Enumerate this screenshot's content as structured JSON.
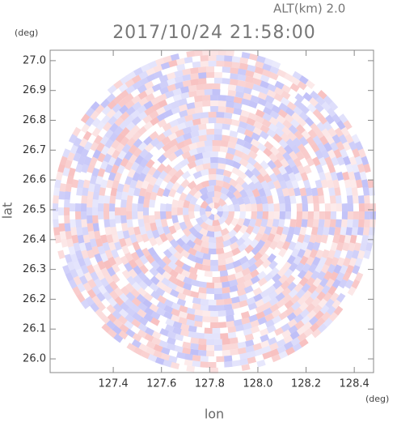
{
  "chart_data": {
    "type": "radar-ppi",
    "title": "2017/10/24 21:58:00",
    "subtitle": "ALT(km) 2.0",
    "x_label": "lon",
    "y_label": "lat",
    "x_unit": "(deg)",
    "y_unit": "(deg)",
    "xlim": [
      127.138,
      128.48
    ],
    "ylim": [
      25.954,
      27.035
    ],
    "xticks": [
      {
        "value": 127.4,
        "label": "127.4"
      },
      {
        "value": 127.6,
        "label": "127.6"
      },
      {
        "value": 127.8,
        "label": "127.8"
      },
      {
        "value": 128.0,
        "label": "128.0"
      },
      {
        "value": 128.2,
        "label": "128.2"
      },
      {
        "value": 128.4,
        "label": "128.4"
      }
    ],
    "yticks": [
      {
        "value": 26.0,
        "label": "26.0"
      },
      26.1,
      26.2,
      26.3,
      26.4,
      26.5,
      26.6,
      26.7,
      26.8,
      26.9,
      {
        "value": 27.0,
        "label": "27.0"
      }
    ]
  }
}
